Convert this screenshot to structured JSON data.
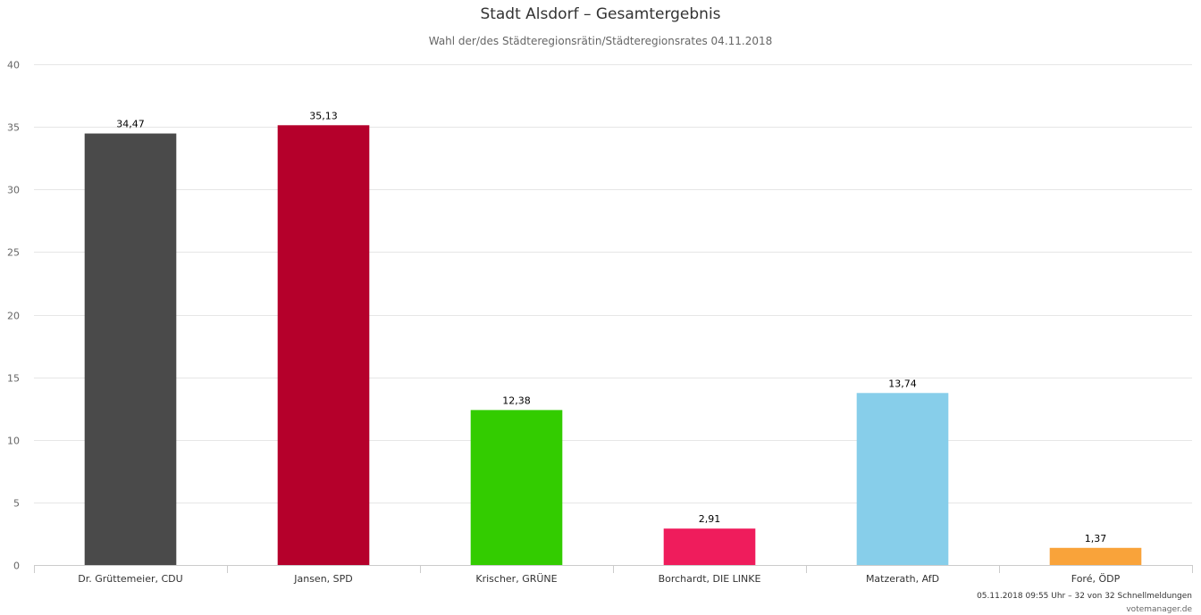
{
  "chart_data": {
    "type": "bar",
    "title": "Stadt Alsdorf – Gesamtergebnis",
    "subtitle": "Wahl der/des Städteregionsrätin/Städteregionsrates 04.11.2018",
    "categories": [
      "Dr. Grüttemeier, CDU",
      "Jansen, SPD",
      "Krischer, GRÜNE",
      "Borchardt, DIE LINKE",
      "Matzerath, AfD",
      "Foré, ÖDP"
    ],
    "values": [
      34.47,
      35.13,
      12.38,
      2.91,
      13.74,
      1.37
    ],
    "data_labels": [
      "34,47",
      "35,13",
      "12,38",
      "2,91",
      "13,74",
      "1,37"
    ],
    "colors": [
      "#4a4a4a",
      "#b5002b",
      "#33cc00",
      "#ef1c5c",
      "#87ceea",
      "#f9a33a"
    ],
    "y_ticks": [
      0,
      5,
      10,
      15,
      20,
      25,
      30,
      35,
      40
    ],
    "ylim": [
      0,
      40
    ],
    "xlabel": "",
    "ylabel": "",
    "grid": true,
    "legend": "none"
  },
  "footer": {
    "status": "05.11.2018 09:55 Uhr – 32 von 32 Schnellmeldungen",
    "source": "votemanager.de"
  }
}
